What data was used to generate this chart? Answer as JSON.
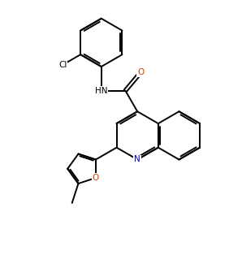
{
  "background_color": "#ffffff",
  "line_color": "#000000",
  "n_color": "#0000bb",
  "o_color": "#cc4400",
  "line_width": 1.4,
  "figsize": [
    2.82,
    3.14
  ],
  "dpi": 100,
  "xlim": [
    0,
    10
  ],
  "ylim": [
    0,
    11.1
  ]
}
